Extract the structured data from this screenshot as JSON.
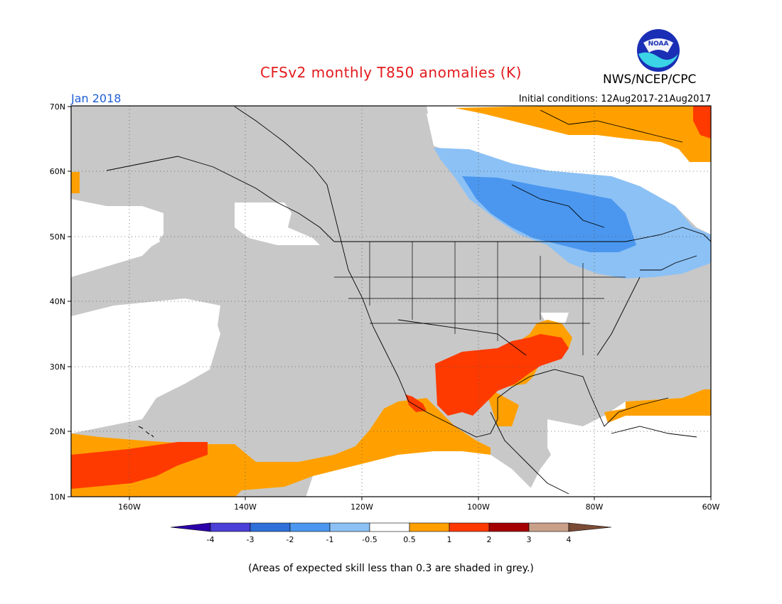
{
  "header": {
    "title": "CFSv2 monthly T850 anomalies (K)",
    "agency": "NWS/NCEP/CPC",
    "logo_text": "NOAA",
    "period": "Jan 2018",
    "initial_conditions": "Initial conditions: 12Aug2017-21Aug2017"
  },
  "map": {
    "lat_labels": [
      "70N",
      "60N",
      "50N",
      "40N",
      "30N",
      "20N",
      "10N"
    ],
    "lon_labels": [
      "160W",
      "140W",
      "120W",
      "100W",
      "80W",
      "60W"
    ]
  },
  "legend": {
    "ticks": [
      "-4",
      "-3",
      "-2",
      "-1",
      "-0.5",
      "0.5",
      "1",
      "2",
      "3",
      "4"
    ],
    "colors": [
      "#2b00a8",
      "#4a3fd6",
      "#2f6fd9",
      "#4b97ef",
      "#8cc1f5",
      "#ffffff",
      "#ffa000",
      "#ff3a00",
      "#a50000",
      "#c9a08a",
      "#7a4b36"
    ]
  },
  "footnote": "(Areas of expected skill less than 0.3 are shaded in grey.)",
  "colors": {
    "title": "#e41a1c",
    "period": "#1f5fd6",
    "skill_grey": "#c8c8c8"
  }
}
